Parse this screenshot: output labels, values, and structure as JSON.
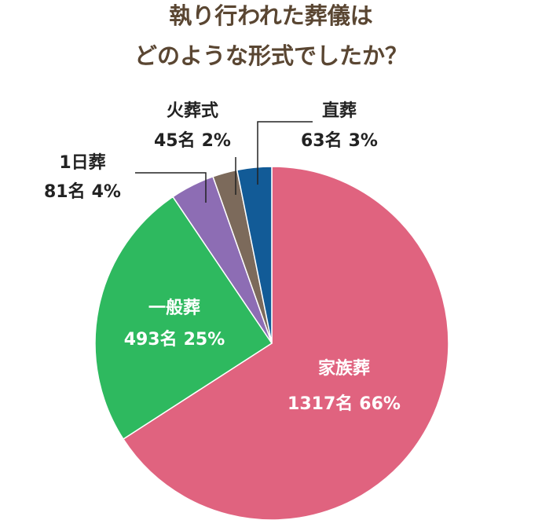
{
  "chart_data": {
    "type": "pie",
    "title": [
      "執り行われた葬儀は",
      "どのような形式でしたか？"
    ],
    "categories": [
      "家族葬",
      "一般葬",
      "1日葬",
      "火葬式",
      "直葬"
    ],
    "values": [
      1317,
      493,
      81,
      45,
      63
    ],
    "value_labels": [
      "1317名",
      "493名",
      "81名",
      "45名",
      "63名"
    ],
    "percents": [
      66,
      25,
      4,
      2,
      3
    ],
    "percent_labels": [
      "66%",
      "25%",
      "4%",
      "2%",
      "3%"
    ],
    "colors": [
      "#e0637f",
      "#2eb95f",
      "#8d6db4",
      "#7c6a5b",
      "#125b97"
    ]
  }
}
